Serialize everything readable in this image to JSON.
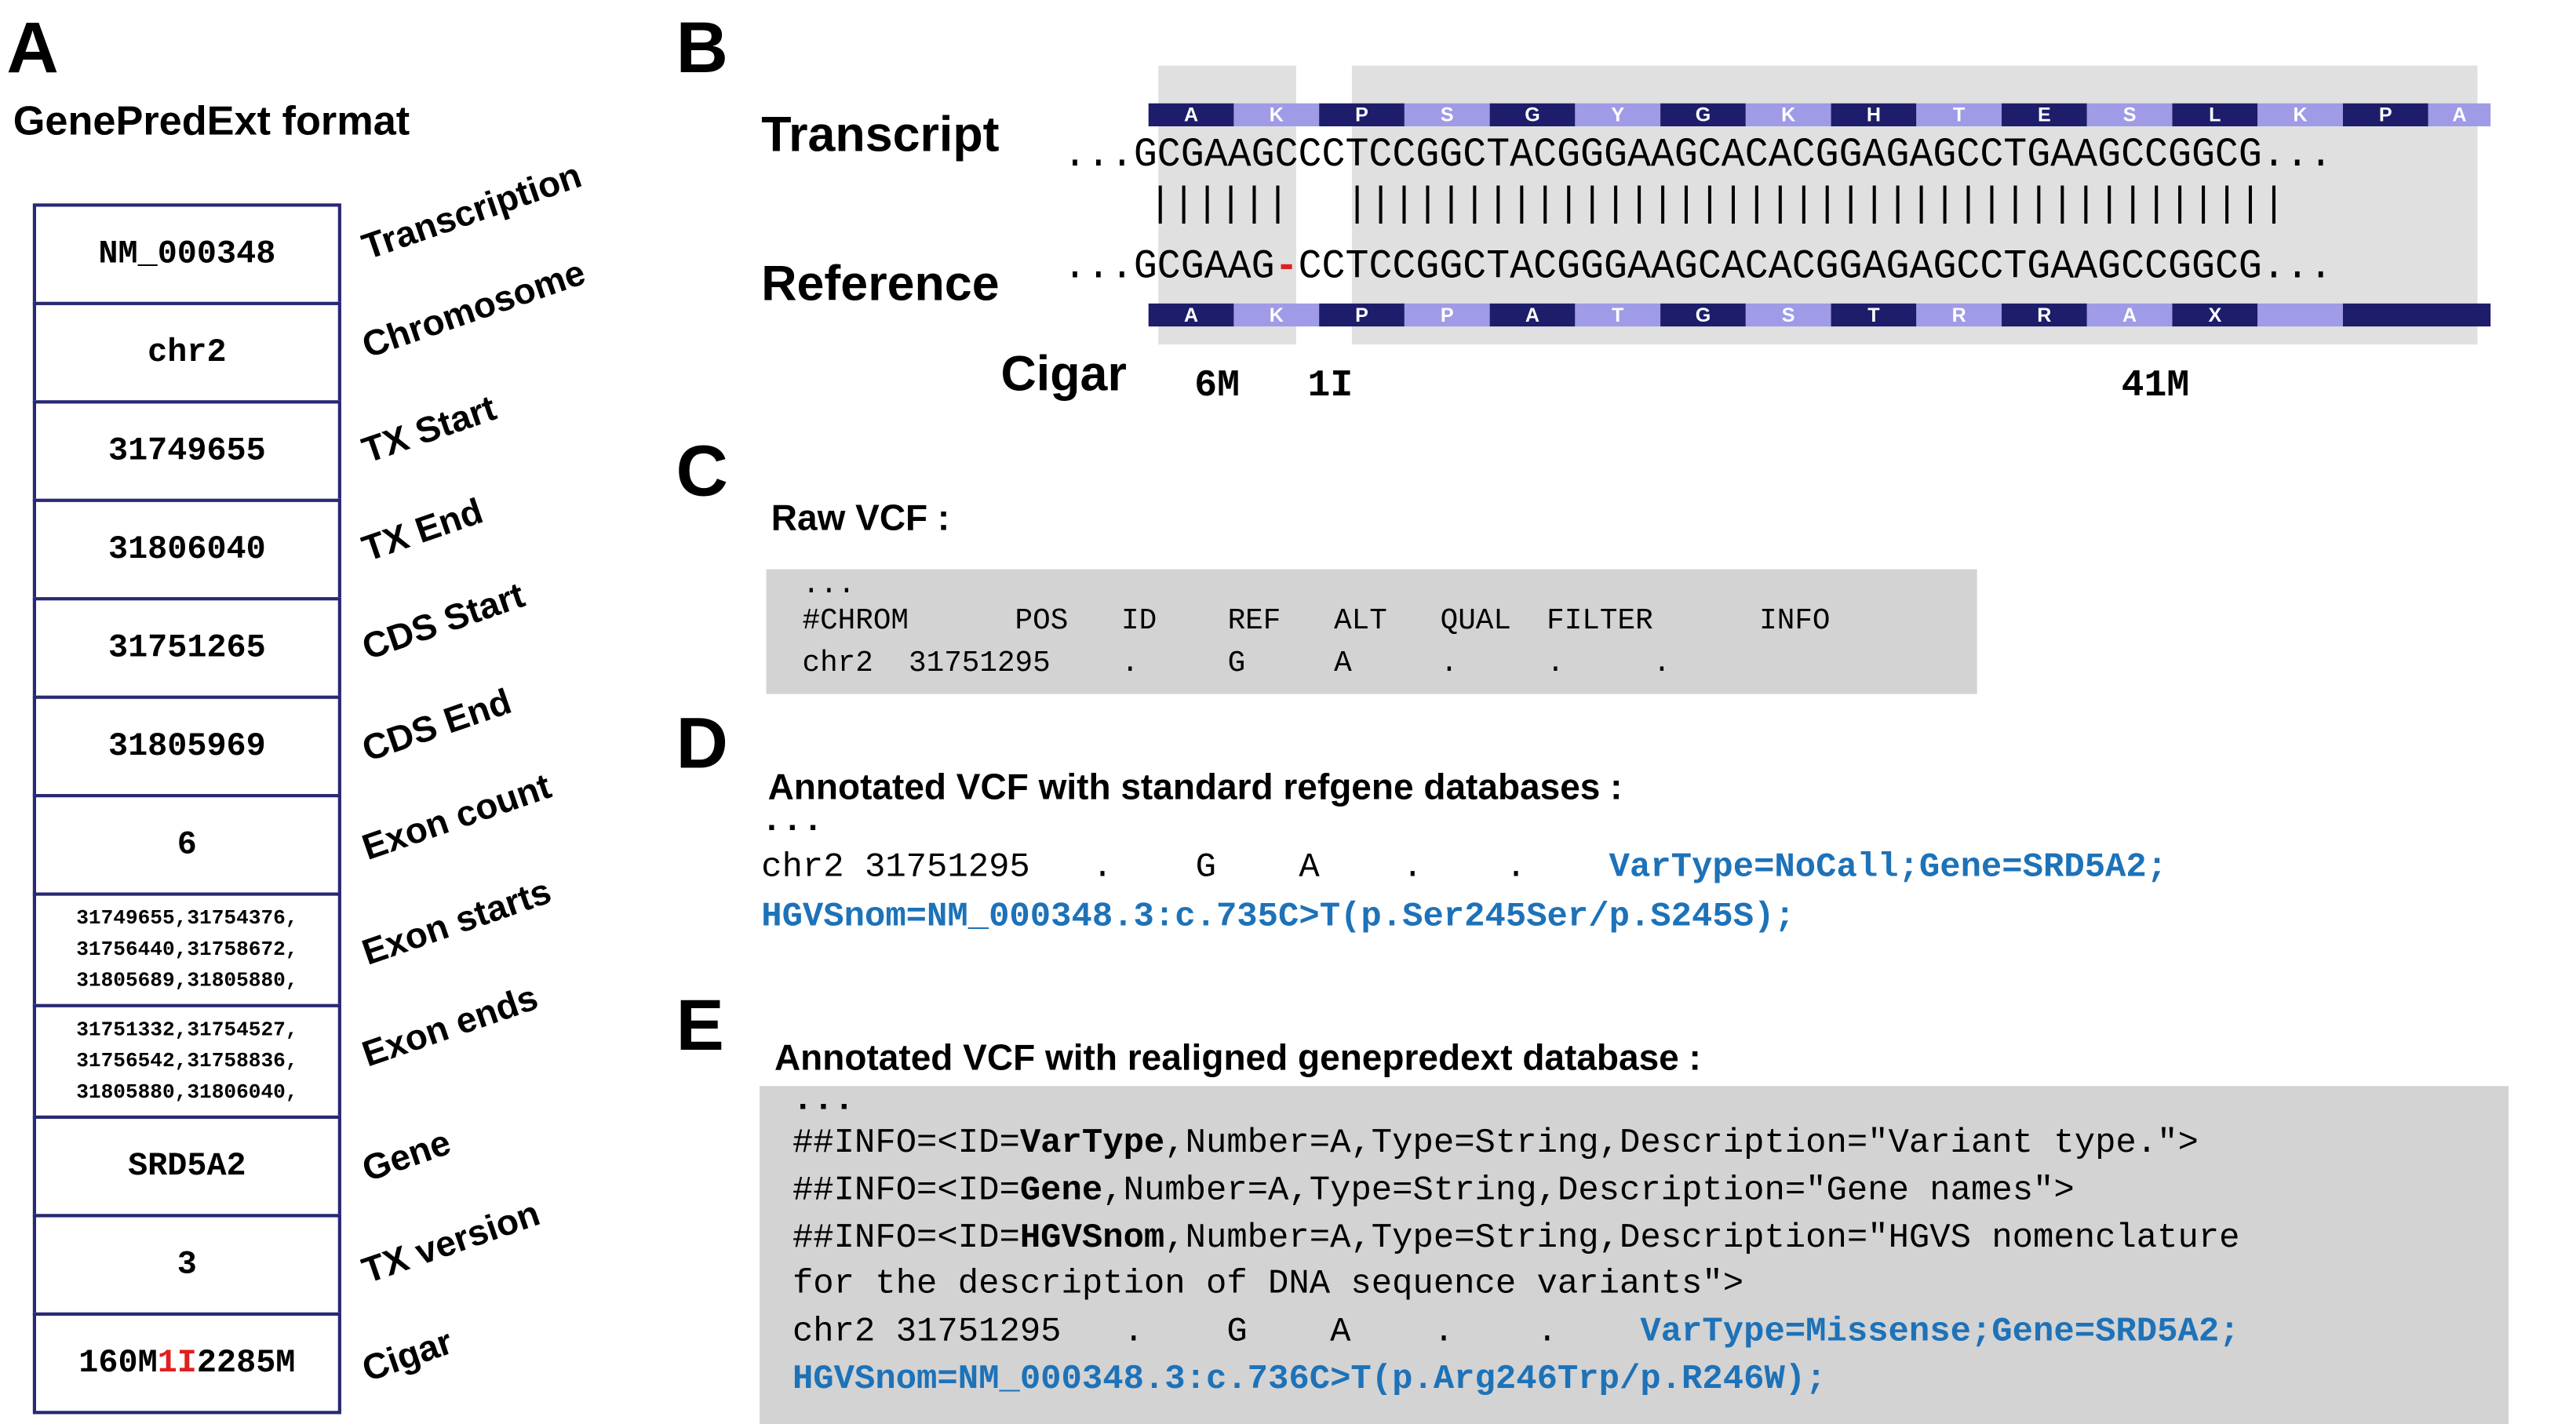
{
  "panels": {
    "a": "A",
    "b": "B",
    "c": "C",
    "d": "D",
    "e": "E"
  },
  "panel_a": {
    "title": "GenePredExt format",
    "rows": [
      {
        "value": "NM_000348",
        "label": "Transcription"
      },
      {
        "value": "chr2",
        "label": "Chromosome"
      },
      {
        "value": "31749655",
        "label": "TX Start"
      },
      {
        "value": "31806040",
        "label": "TX End"
      },
      {
        "value": "31751265",
        "label": "CDS Start"
      },
      {
        "value": "31805969",
        "label": "CDS End"
      },
      {
        "value": "6",
        "label": "Exon count"
      },
      {
        "value": "31749655,31754376,\n31756440,31758672,\n31805689,31805880,",
        "label": "Exon starts"
      },
      {
        "value": "31751332,31754527,\n31756542,31758836,\n31805880,31806040,",
        "label": "Exon ends"
      },
      {
        "value": "SRD5A2",
        "label": "Gene"
      },
      {
        "value": "3",
        "label": "TX version"
      }
    ],
    "cigar_row": {
      "pre": "160M",
      "hl": "1I",
      "post": "2285M",
      "label": "Cigar"
    }
  },
  "panel_b": {
    "transcript_label": "Transcript",
    "reference_label": "Reference",
    "cigar_label": "Cigar",
    "transcript_seq": "...GCGAAGCCCTCCGGCTACGGGAAGCACACGGAGAGCCTGAAGCCGGCG...",
    "reference_prefix": "...GCGAAG",
    "reference_gap": "-",
    "reference_suffix": "CCTCCGGCTACGGGAAGCACACGGAGAGCCTGAAGCCGGCG...",
    "match_left": "||||||",
    "match_right": "||||||||||||||||||||||||||||||||||||||||",
    "transcript_aa": [
      "A",
      "K",
      "P",
      "S",
      "G",
      "Y",
      "G",
      "K",
      "H",
      "T",
      "E",
      "S",
      "L",
      "K",
      "P",
      "A"
    ],
    "reference_aa": [
      "A",
      "K",
      "P",
      "P",
      "A",
      "T",
      "G",
      "S",
      "T",
      "R",
      "R",
      "A",
      "X",
      "",
      ""
    ],
    "cigar_ops": [
      "6M",
      "1I",
      "41M"
    ],
    "colors": {
      "dark": "#1d1d6b",
      "light": "#9f9be6",
      "shade": "#d9d9d9",
      "gap": "#e02020"
    }
  },
  "panel_c": {
    "title": "Raw VCF :",
    "lines": [
      "...",
      "#CHROM      POS   ID    REF   ALT   QUAL  FILTER      INFO",
      "chr2  31751295    .     G     A     .     .     ."
    ]
  },
  "panel_d": {
    "title": "Annotated VCF with standard refgene databases :",
    "ellipsis": "...",
    "line1_plain": "chr2 31751295   .    G    A    .    .    ",
    "line1_blue": "VarType=NoCall;Gene=SRD5A2;",
    "line2_blue": "HGVSnom=NM_000348.3:c.735C>T(p.Ser245Ser/p.S245S);"
  },
  "panel_e": {
    "title": "Annotated VCF with realigned genepredext database :",
    "ellipsis": "...",
    "info_lines": [
      {
        "pre": "##INFO=<ID=",
        "id": "VarType",
        "post": ",Number=A,Type=String,Description=\"Variant type.\">"
      },
      {
        "pre": "##INFO=<ID=",
        "id": "Gene",
        "post": ",Number=A,Type=String,Description=\"Gene names\">"
      },
      {
        "pre": "##INFO=<ID=",
        "id": "HGVSnom",
        "post": ",Number=A,Type=String,Description=\"HGVS nomenclature"
      }
    ],
    "info_cont": "for the description of DNA sequence variants\">",
    "line1_plain": "chr2 31751295   .    G    A    .    .    ",
    "line1_blue": "VarType=Missense;Gene=SRD5A2;",
    "line2_blue": "HGVSnom=NM_000348.3:c.736C>T(p.Arg246Trp/p.R246W);"
  }
}
